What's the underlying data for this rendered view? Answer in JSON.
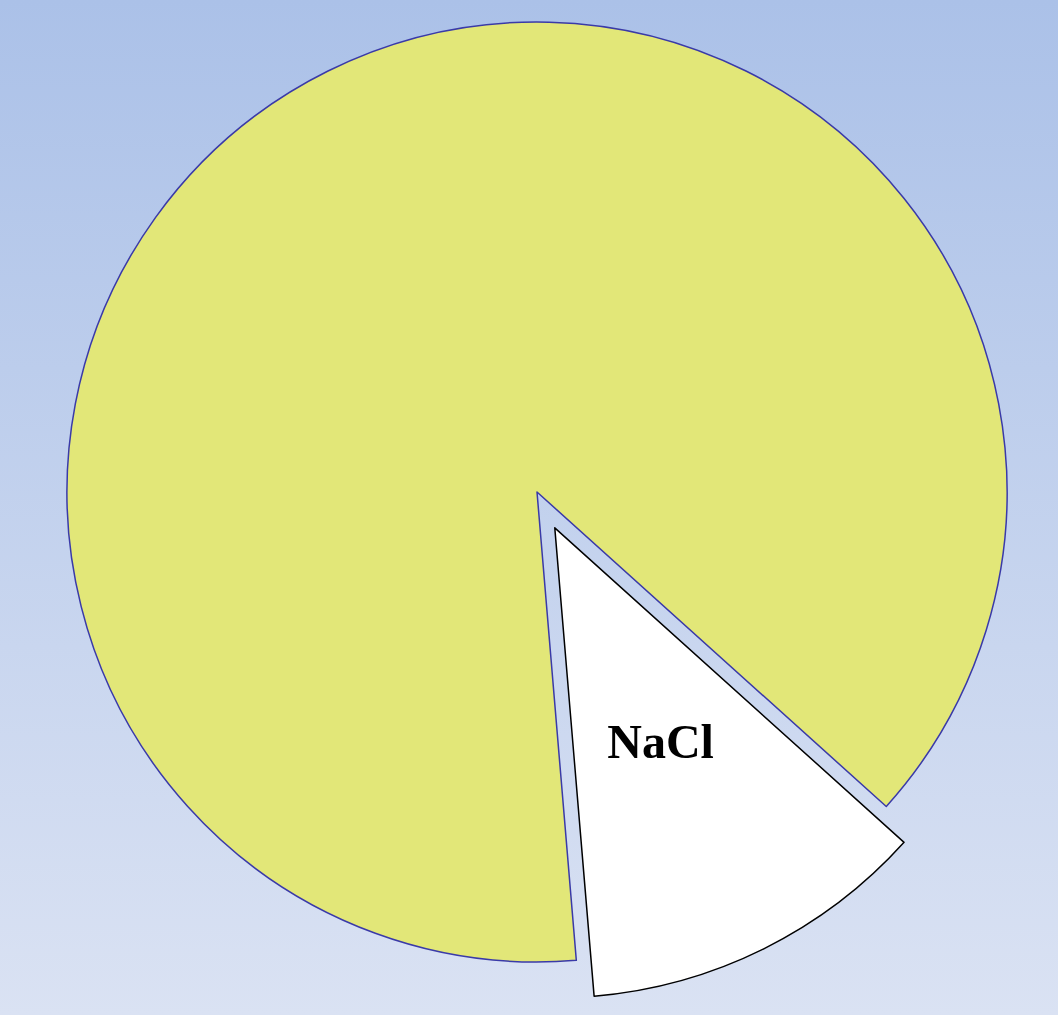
{
  "chart_data": {
    "type": "pie",
    "categories": [
      "NaCl",
      null
    ],
    "values": [
      12,
      88
    ],
    "colors": [
      "#ffffff",
      "#e2e778"
    ]
  }
}
